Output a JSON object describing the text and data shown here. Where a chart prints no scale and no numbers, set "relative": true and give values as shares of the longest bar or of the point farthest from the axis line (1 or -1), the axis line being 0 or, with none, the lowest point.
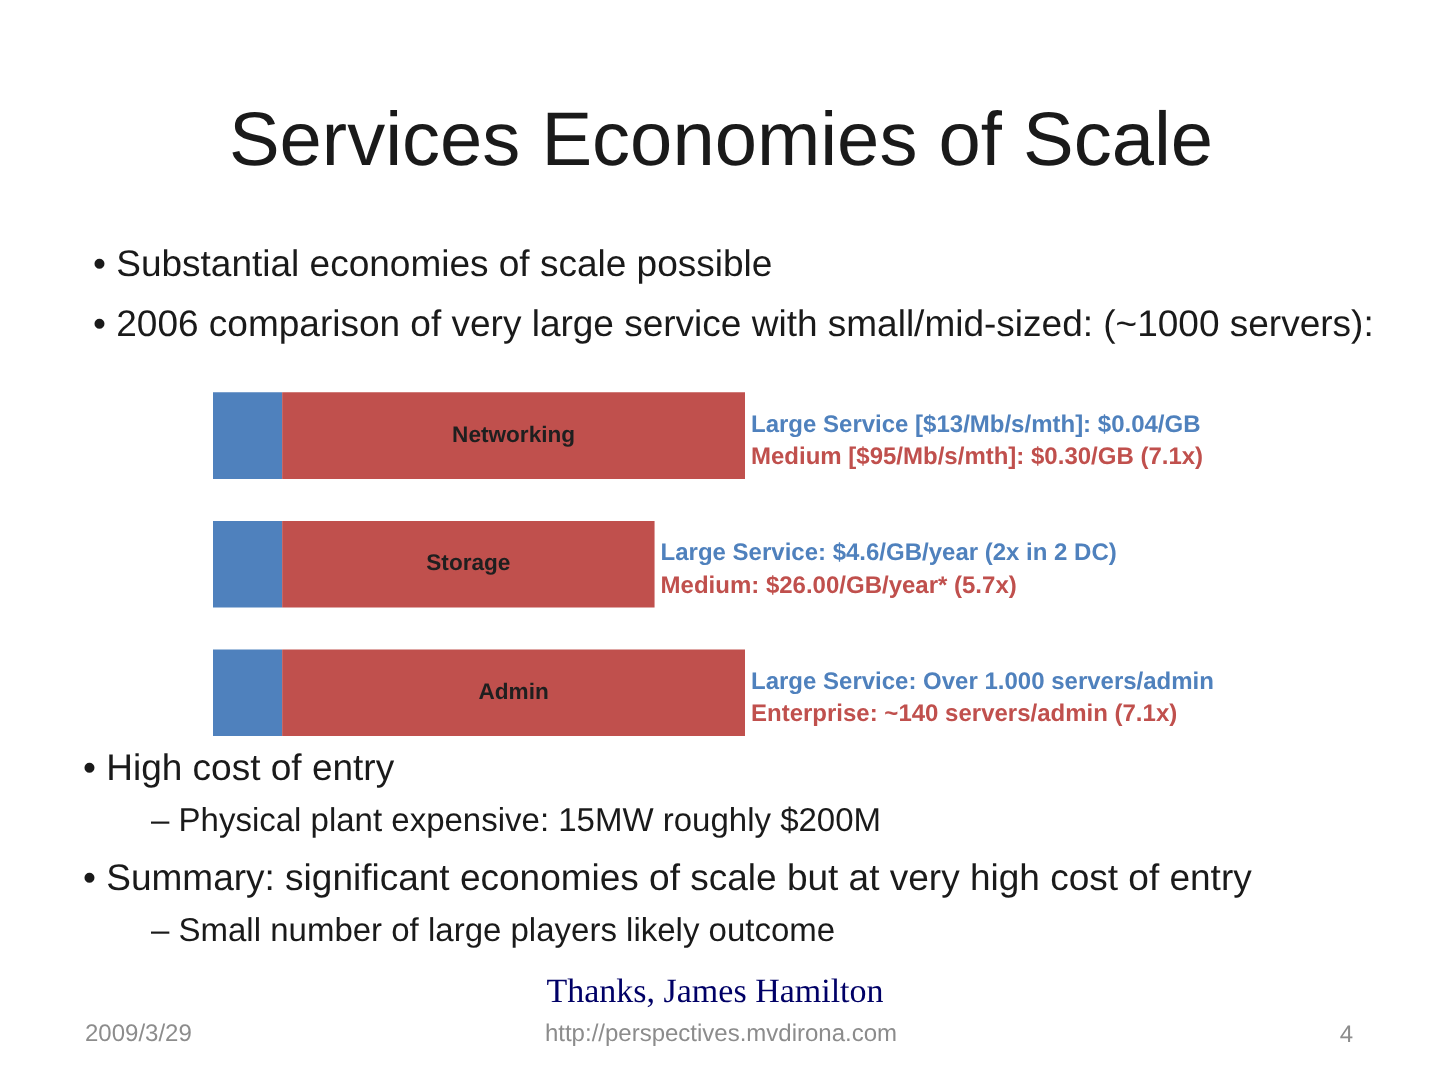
{
  "chart_data": {
    "type": "bar",
    "orientation": "horizontal",
    "stacked": true,
    "relative": true,
    "title": "Services Economies of Scale",
    "categories": [
      "Networking",
      "Storage",
      "Admin"
    ],
    "series": [
      {
        "color": "#4f81bd",
        "values": [
          0.13,
          0.13,
          0.13
        ]
      },
      {
        "color": "#c0504d",
        "values": [
          0.87,
          0.7,
          0.87
        ]
      }
    ],
    "annotations": [
      "• Substantial economies of scale possible",
      "• 2006 comparison of very large service with small/mid-sized: (~1000 servers):",
      "Large Service [$13/Mb/s/mth]: $0.04/GB",
      "Medium [$95/Mb/s/mth]: $0.30/GB (7.1x)",
      "Large Service: $4.6/GB/year (2x in 2 DC)",
      "Medium: $26.00/GB/year* (5.7x)",
      "Large Service: Over 1.000 servers/admin",
      "Enterprise: ~140 servers/admin (7.1x)",
      "• High cost of entry",
      "– Physical plant expensive: 15MW roughly $200M",
      "• Summary: significant economies of scale but at very high cost of entry",
      "– Small number of large players likely outcome",
      "Thanks, James Hamilton",
      "2009/3/29",
      "http://perspectives.mvdirona.com",
      "4"
    ]
  }
}
